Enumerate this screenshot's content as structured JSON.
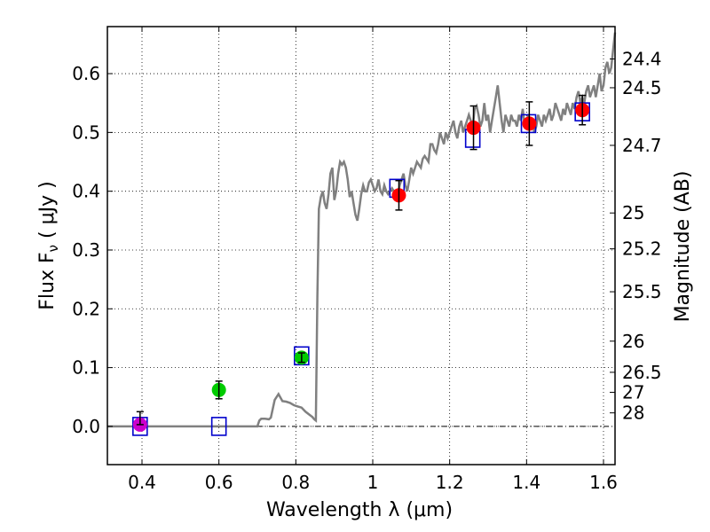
{
  "chart_data": {
    "type": "scatter",
    "xlabel": "Wavelength  λ (μm)",
    "ylabel_left": "Flux  F",
    "ylabel_left_sub": "ν",
    "ylabel_left_unit": " ( μJy )",
    "ylabel_right": "Magnitude (AB)",
    "xlim": [
      0.31,
      1.63
    ],
    "ylim": [
      -0.065,
      0.68
    ],
    "grid": true,
    "x_ticks": [
      {
        "value": 0.4,
        "label": "0.4"
      },
      {
        "value": 0.6,
        "label": "0.6"
      },
      {
        "value": 0.8,
        "label": "0.8"
      },
      {
        "value": 1.0,
        "label": "1"
      },
      {
        "value": 1.2,
        "label": "1.2"
      },
      {
        "value": 1.4,
        "label": "1.4"
      },
      {
        "value": 1.6,
        "label": "1.6"
      }
    ],
    "y_ticks": [
      {
        "value": 0.0,
        "label": "0.0"
      },
      {
        "value": 0.1,
        "label": "0.1"
      },
      {
        "value": 0.2,
        "label": "0.2"
      },
      {
        "value": 0.3,
        "label": "0.3"
      },
      {
        "value": 0.4,
        "label": "0.4"
      },
      {
        "value": 0.5,
        "label": "0.5"
      },
      {
        "value": 0.6,
        "label": "0.6"
      }
    ],
    "right_ticks": [
      {
        "flux": 0.625,
        "label": "24.4"
      },
      {
        "flux": 0.576,
        "label": "24.5"
      },
      {
        "flux": 0.478,
        "label": "24.7"
      },
      {
        "flux": 0.363,
        "label": "25"
      },
      {
        "flux": 0.302,
        "label": "25.2"
      },
      {
        "flux": 0.229,
        "label": "25.5"
      },
      {
        "flux": 0.145,
        "label": "26"
      },
      {
        "flux": 0.092,
        "label": "26.5"
      },
      {
        "flux": 0.058,
        "label": "27"
      },
      {
        "flux": 0.023,
        "label": "28"
      }
    ],
    "model_spectrum": {
      "color": "#808080",
      "x": [
        0.31,
        0.7,
        0.705,
        0.71,
        0.72,
        0.73,
        0.735,
        0.745,
        0.755,
        0.765,
        0.775,
        0.785,
        0.795,
        0.805,
        0.815,
        0.825,
        0.835,
        0.843,
        0.848,
        0.852,
        0.856,
        0.86,
        0.865,
        0.87,
        0.875,
        0.88,
        0.885,
        0.89,
        0.895,
        0.9,
        0.905,
        0.91,
        0.915,
        0.92,
        0.925,
        0.93,
        0.935,
        0.94,
        0.945,
        0.95,
        0.955,
        0.96,
        0.965,
        0.97,
        0.975,
        0.98,
        0.985,
        0.99,
        0.995,
        1.0,
        1.005,
        1.01,
        1.015,
        1.02,
        1.025,
        1.03,
        1.035,
        1.04,
        1.045,
        1.05,
        1.055,
        1.06,
        1.065,
        1.07,
        1.075,
        1.08,
        1.085,
        1.09,
        1.095,
        1.1,
        1.105,
        1.11,
        1.115,
        1.12,
        1.125,
        1.13,
        1.135,
        1.14,
        1.145,
        1.15,
        1.155,
        1.16,
        1.165,
        1.17,
        1.175,
        1.18,
        1.185,
        1.19,
        1.195,
        1.2,
        1.205,
        1.21,
        1.215,
        1.22,
        1.225,
        1.23,
        1.235,
        1.24,
        1.245,
        1.25,
        1.255,
        1.26,
        1.265,
        1.27,
        1.275,
        1.28,
        1.285,
        1.29,
        1.295,
        1.3,
        1.305,
        1.31,
        1.315,
        1.32,
        1.325,
        1.33,
        1.335,
        1.34,
        1.345,
        1.35,
        1.355,
        1.36,
        1.365,
        1.37,
        1.375,
        1.38,
        1.385,
        1.39,
        1.395,
        1.4,
        1.405,
        1.41,
        1.415,
        1.42,
        1.425,
        1.43,
        1.435,
        1.44,
        1.445,
        1.45,
        1.455,
        1.46,
        1.465,
        1.47,
        1.475,
        1.48,
        1.485,
        1.49,
        1.495,
        1.5,
        1.505,
        1.51,
        1.515,
        1.52,
        1.525,
        1.53,
        1.535,
        1.54,
        1.545,
        1.55,
        1.555,
        1.56,
        1.565,
        1.57,
        1.575,
        1.58,
        1.585,
        1.59,
        1.595,
        1.6,
        1.605,
        1.61,
        1.615,
        1.62,
        1.625,
        1.63
      ],
      "y": [
        0.0,
        0.0,
        0.01,
        0.013,
        0.013,
        0.012,
        0.015,
        0.045,
        0.055,
        0.043,
        0.042,
        0.04,
        0.036,
        0.034,
        0.032,
        0.025,
        0.02,
        0.016,
        0.012,
        0.01,
        0.22,
        0.37,
        0.39,
        0.4,
        0.38,
        0.37,
        0.395,
        0.43,
        0.44,
        0.385,
        0.4,
        0.43,
        0.45,
        0.445,
        0.45,
        0.44,
        0.42,
        0.39,
        0.4,
        0.38,
        0.36,
        0.35,
        0.37,
        0.395,
        0.41,
        0.4,
        0.4,
        0.415,
        0.42,
        0.41,
        0.4,
        0.405,
        0.42,
        0.4,
        0.395,
        0.41,
        0.4,
        0.395,
        0.4,
        0.405,
        0.4,
        0.395,
        0.39,
        0.41,
        0.42,
        0.43,
        0.41,
        0.4,
        0.42,
        0.44,
        0.43,
        0.44,
        0.45,
        0.445,
        0.44,
        0.455,
        0.46,
        0.455,
        0.45,
        0.48,
        0.48,
        0.47,
        0.465,
        0.48,
        0.5,
        0.49,
        0.48,
        0.5,
        0.49,
        0.5,
        0.51,
        0.52,
        0.5,
        0.49,
        0.51,
        0.52,
        0.5,
        0.51,
        0.52,
        0.53,
        0.52,
        0.51,
        0.54,
        0.545,
        0.53,
        0.51,
        0.52,
        0.55,
        0.52,
        0.53,
        0.5,
        0.52,
        0.54,
        0.56,
        0.58,
        0.55,
        0.52,
        0.5,
        0.53,
        0.52,
        0.51,
        0.53,
        0.52,
        0.52,
        0.51,
        0.53,
        0.52,
        0.54,
        0.51,
        0.52,
        0.53,
        0.51,
        0.52,
        0.5,
        0.51,
        0.53,
        0.52,
        0.51,
        0.53,
        0.52,
        0.53,
        0.54,
        0.52,
        0.53,
        0.55,
        0.54,
        0.53,
        0.52,
        0.54,
        0.53,
        0.55,
        0.54,
        0.53,
        0.55,
        0.54,
        0.56,
        0.57,
        0.55,
        0.56,
        0.55,
        0.57,
        0.58,
        0.56,
        0.57,
        0.58,
        0.56,
        0.58,
        0.6,
        0.57,
        0.58,
        0.61,
        0.62,
        0.6,
        0.61,
        0.64,
        0.67
      ]
    },
    "model_boxes": [
      {
        "x": 0.395,
        "y": 0.0,
        "color": "#0000cc"
      },
      {
        "x": 0.6,
        "y": 0.0,
        "color": "#0000cc"
      },
      {
        "x": 0.815,
        "y": 0.12,
        "color": "#0000cc"
      },
      {
        "x": 1.063,
        "y": 0.405,
        "color": "#0000cc"
      },
      {
        "x": 1.26,
        "y": 0.49,
        "color": "#0000cc"
      },
      {
        "x": 1.405,
        "y": 0.515,
        "color": "#0000cc"
      },
      {
        "x": 1.545,
        "y": 0.535,
        "color": "#0000cc"
      }
    ],
    "observed_points": [
      {
        "x": 0.395,
        "y": 0.003,
        "err_lo": 0.0,
        "err_hi": 0.022,
        "color": "#cc00cc"
      },
      {
        "x": 0.6,
        "y": 0.062,
        "err_lo": 0.015,
        "err_hi": 0.015,
        "color": "#00cc00"
      },
      {
        "x": 0.815,
        "y": 0.117,
        "err_lo": 0.008,
        "err_hi": 0.008,
        "color": "#00cc00"
      },
      {
        "x": 1.068,
        "y": 0.393,
        "err_lo": 0.025,
        "err_hi": 0.025,
        "color": "#ff0000"
      },
      {
        "x": 1.262,
        "y": 0.508,
        "err_lo": 0.037,
        "err_hi": 0.037,
        "color": "#ff0000"
      },
      {
        "x": 1.407,
        "y": 0.515,
        "err_lo": 0.037,
        "err_hi": 0.037,
        "color": "#ff0000"
      },
      {
        "x": 1.545,
        "y": 0.538,
        "err_lo": 0.025,
        "err_hi": 0.025,
        "color": "#ff0000"
      }
    ]
  }
}
